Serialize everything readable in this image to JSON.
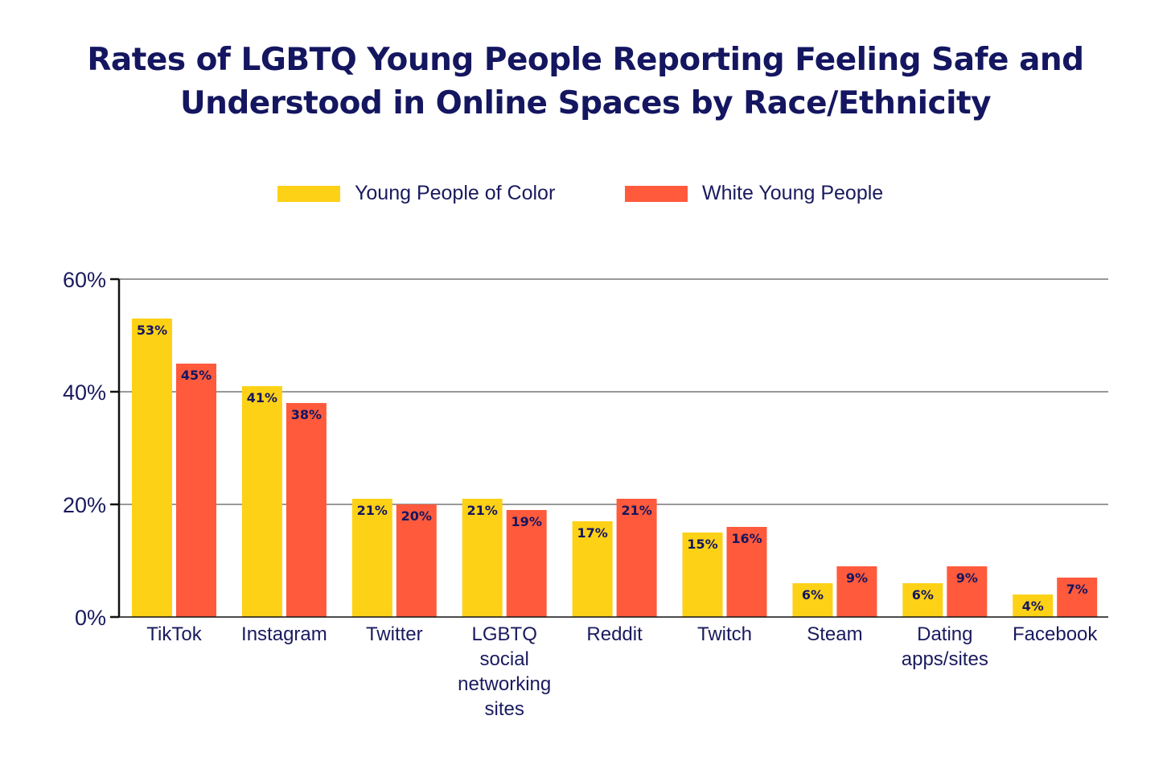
{
  "title_lines": [
    "Rates of LGBTQ Young People Reporting Feeling Safe and",
    "Understood in Online Spaces by Race/Ethnicity"
  ],
  "legend": [
    {
      "label": "Young People of Color",
      "color": "#FDD116"
    },
    {
      "label": "White Young People",
      "color": "#FF5A3C"
    }
  ],
  "chart_data": {
    "type": "bar",
    "title": "Rates of LGBTQ Young People Reporting Feeling Safe and Understood in Online Spaces by Race/Ethnicity",
    "categories": [
      [
        "TikTok"
      ],
      [
        "Instagram"
      ],
      [
        "Twitter"
      ],
      [
        "LGBTQ",
        "social",
        "networking",
        "sites"
      ],
      [
        "Reddit"
      ],
      [
        "Twitch"
      ],
      [
        "Steam"
      ],
      [
        "Dating",
        "apps/sites"
      ],
      [
        "Facebook"
      ]
    ],
    "series": [
      {
        "name": "Young People of Color",
        "color": "#FDD116",
        "values": [
          53,
          41,
          21,
          21,
          17,
          15,
          6,
          6,
          4
        ]
      },
      {
        "name": "White Young People",
        "color": "#FF5A3C",
        "values": [
          45,
          38,
          20,
          19,
          21,
          16,
          9,
          9,
          7
        ]
      }
    ],
    "value_suffix": "%",
    "ylim": [
      0,
      60
    ],
    "yticks": [
      0,
      20,
      40,
      60
    ],
    "ytick_labels": [
      "0%",
      "20%",
      "40%",
      "60%"
    ],
    "grid": true,
    "legend_position": "top-center"
  }
}
